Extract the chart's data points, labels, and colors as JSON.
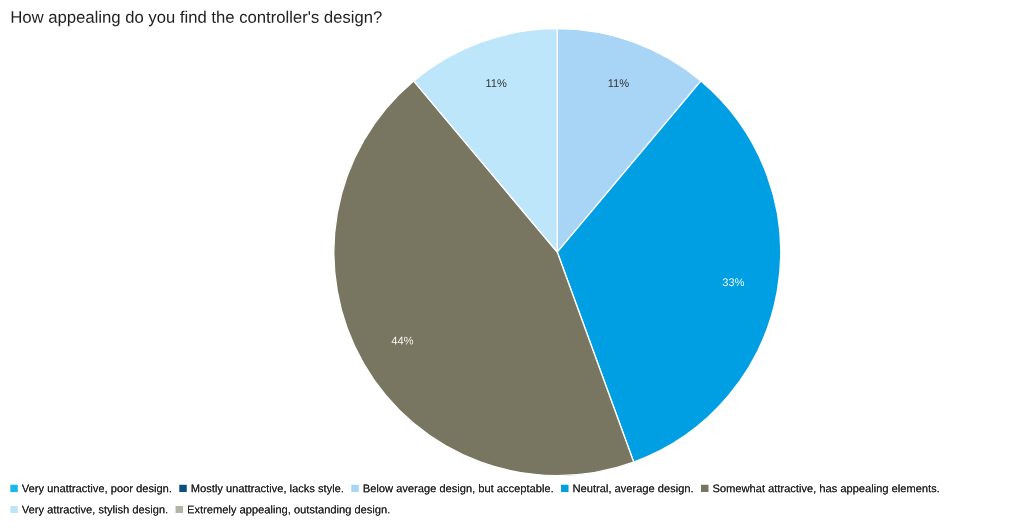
{
  "chart_data": {
    "type": "pie",
    "title": "How appealing do you find the controller's design?",
    "categories": [
      "Very unattractive, poor design.",
      "Mostly unattractive, lacks style.",
      "Below average design, but acceptable.",
      "Neutral, average design.",
      "Somewhat attractive, has appealing elements.",
      "Very attractive, stylish design.",
      "Extremely appealing, outstanding design."
    ],
    "values": [
      0,
      0,
      11,
      33,
      44,
      11,
      0
    ],
    "colors": [
      "#1ab7ea",
      "#0d4f80",
      "#a8d4f5",
      "#009fe3",
      "#787560",
      "#bde6fa",
      "#b3b3a6"
    ],
    "value_labels": [
      null,
      null,
      "11%",
      "33%",
      "44%",
      "11%",
      null
    ],
    "legend": "bottom"
  }
}
